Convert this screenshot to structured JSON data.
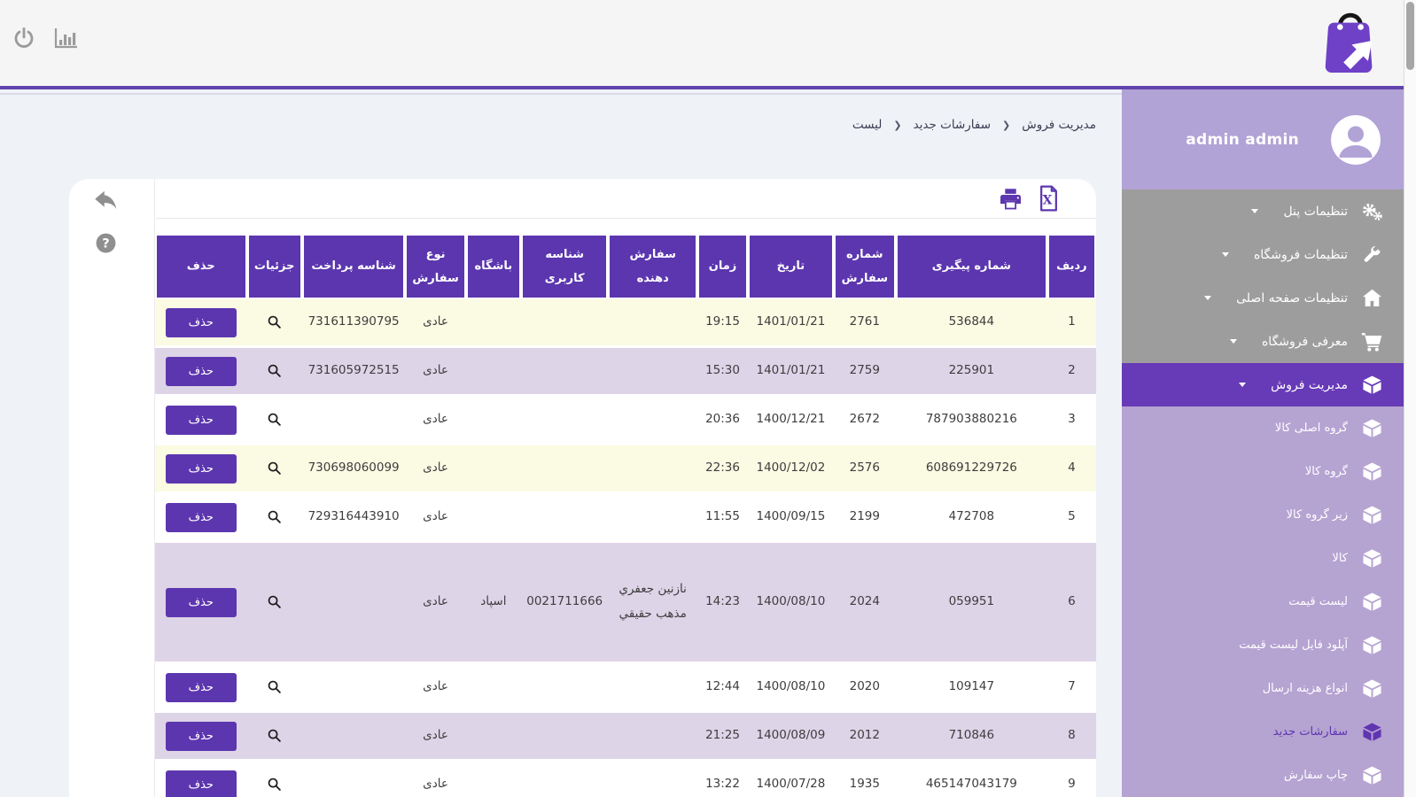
{
  "topbar": {
    "icons": [
      "power-icon",
      "bar-chart-icon"
    ],
    "logo": "shopping-bag-logo"
  },
  "breadcrumb": {
    "items": [
      "مدیریت فروش",
      "سفارشات جدید",
      "لیست"
    ],
    "separator": "❮"
  },
  "toolbar": {
    "icons": [
      "print-icon",
      "excel-export-icon"
    ]
  },
  "gutter": {
    "icons": [
      "back-arrow-icon",
      "help-icon"
    ]
  },
  "sidebar": {
    "user_name": "admin admin",
    "menu": [
      {
        "label": "تنظیمات پنل",
        "icon": "gears-icon",
        "active": false
      },
      {
        "label": "تنظیمات فروشگاه",
        "icon": "wrench-icon",
        "active": false
      },
      {
        "label": "تنظیمات صفحه اصلی",
        "icon": "home-icon",
        "active": false
      },
      {
        "label": "معرفی فروشگاه",
        "icon": "cart-icon",
        "active": false
      },
      {
        "label": "مدیریت فروش",
        "icon": "cube-icon",
        "active": true
      }
    ],
    "submenu": [
      {
        "label": "گروه اصلی کالا",
        "icon": "cube-icon",
        "active": false
      },
      {
        "label": "گروه کالا",
        "icon": "cube-icon",
        "active": false
      },
      {
        "label": "زیر گروه کالا",
        "icon": "cube-icon",
        "active": false
      },
      {
        "label": "کالا",
        "icon": "cube-icon",
        "active": false
      },
      {
        "label": "لیست قیمت",
        "icon": "cube-icon",
        "active": false
      },
      {
        "label": "آپلود فایل لیست قیمت",
        "icon": "cube-icon",
        "active": false
      },
      {
        "label": "انواع هزینه ارسال",
        "icon": "cube-icon",
        "active": false
      },
      {
        "label": "سفارشات جدید",
        "icon": "cube-icon",
        "active": true
      },
      {
        "label": "چاپ سفارش",
        "icon": "cube-icon",
        "active": false
      }
    ]
  },
  "table": {
    "headers": [
      {
        "key": "row_no",
        "label": "ردیف"
      },
      {
        "key": "tracking_no",
        "label": "شماره پیگیری"
      },
      {
        "key": "order_no",
        "label": "شماره سفارش"
      },
      {
        "key": "date",
        "label": "تاریخ"
      },
      {
        "key": "time",
        "label": "زمان"
      },
      {
        "key": "customer",
        "label": "سفارش دهنده"
      },
      {
        "key": "user_id",
        "label": "شناسه کاربری"
      },
      {
        "key": "club",
        "label": "باشگاه"
      },
      {
        "key": "order_type",
        "label": "نوع سفارش"
      },
      {
        "key": "payment_id",
        "label": "شناسه پرداخت"
      },
      {
        "key": "details",
        "label": "جزئیات"
      },
      {
        "key": "delete",
        "label": "حذف"
      }
    ],
    "delete_label": "حذف",
    "details_icon": "magnifier-icon",
    "rows": [
      {
        "row_no": "1",
        "tracking_no": "536844",
        "order_no": "2761",
        "date": "1401/01/21",
        "time": "19:15",
        "customer": "",
        "user_id": "",
        "club": "",
        "order_type": "عادی",
        "payment_id": "731611390795",
        "highlight": "yellow"
      },
      {
        "row_no": "2",
        "tracking_no": "225901",
        "order_no": "2759",
        "date": "1401/01/21",
        "time": "15:30",
        "customer": "",
        "user_id": "",
        "club": "",
        "order_type": "عادی",
        "payment_id": "731605972515",
        "highlight": "purple"
      },
      {
        "row_no": "3",
        "tracking_no": "787903880216",
        "order_no": "2672",
        "date": "1400/12/21",
        "time": "20:36",
        "customer": "",
        "user_id": "",
        "club": "",
        "order_type": "عادی",
        "payment_id": "",
        "highlight": "white"
      },
      {
        "row_no": "4",
        "tracking_no": "608691229726",
        "order_no": "2576",
        "date": "1400/12/02",
        "time": "22:36",
        "customer": "",
        "user_id": "",
        "club": "",
        "order_type": "عادی",
        "payment_id": "730698060099",
        "highlight": "yellow"
      },
      {
        "row_no": "5",
        "tracking_no": "472708",
        "order_no": "2199",
        "date": "1400/09/15",
        "time": "11:55",
        "customer": "",
        "user_id": "",
        "club": "",
        "order_type": "عادی",
        "payment_id": "729316443910",
        "highlight": "white"
      },
      {
        "row_no": "6",
        "tracking_no": "059951",
        "order_no": "2024",
        "date": "1400/08/10",
        "time": "14:23",
        "customer": "نازنین جعفري مذهب حقیقي",
        "user_id": "0021711666",
        "club": "اسپاد",
        "order_type": "عادی",
        "payment_id": "",
        "highlight": "purple",
        "tall": true
      },
      {
        "row_no": "7",
        "tracking_no": "109147",
        "order_no": "2020",
        "date": "1400/08/10",
        "time": "12:44",
        "customer": "",
        "user_id": "",
        "club": "",
        "order_type": "عادی",
        "payment_id": "",
        "highlight": "white"
      },
      {
        "row_no": "8",
        "tracking_no": "710846",
        "order_no": "2012",
        "date": "1400/08/09",
        "time": "21:25",
        "customer": "",
        "user_id": "",
        "club": "",
        "order_type": "عادی",
        "payment_id": "",
        "highlight": "purple"
      },
      {
        "row_no": "9",
        "tracking_no": "465147043179",
        "order_no": "1935",
        "date": "1400/07/28",
        "time": "13:22",
        "customer": "",
        "user_id": "",
        "club": "",
        "order_type": "عادی",
        "payment_id": "",
        "highlight": "white"
      }
    ]
  },
  "colors": {
    "accent_purple": "#5c36af",
    "active_menu_purple": "#673ab7",
    "menu_gray": "#9d9d9d",
    "submenu_purple": "#b5a3d2",
    "user_section_purple": "#b2a3d6",
    "row_yellow": "#fbfae3",
    "row_purple": "#ded4e8",
    "topbar_bg": "#f5f5f6",
    "page_bg": "#eff2f7"
  }
}
